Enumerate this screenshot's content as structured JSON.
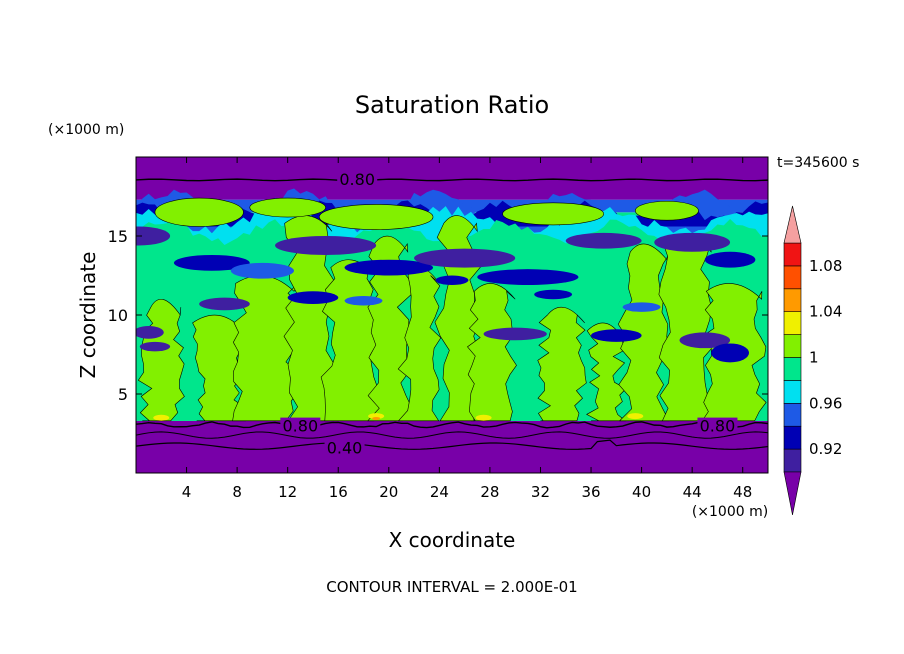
{
  "chart_data": {
    "type": "heatmap",
    "title": "Saturation Ratio",
    "xlabel": "X coordinate",
    "ylabel": "Z coordinate",
    "x_unit": "(×1000 m)",
    "z_unit": "(×1000 m)",
    "time_label": "t=345600 s",
    "footer": "CONTOUR INTERVAL = 2.000E-01",
    "xlim": [
      0,
      50
    ],
    "ylim": [
      0,
      20
    ],
    "x_ticks": [
      "4",
      "8",
      "12",
      "16",
      "20",
      "24",
      "28",
      "32",
      "36",
      "40",
      "44",
      "48"
    ],
    "y_ticks": [
      "5",
      "10",
      "15"
    ],
    "contour_labels": [
      {
        "text": "0.80",
        "x": 17.5,
        "z": 18.6
      },
      {
        "text": "0.80",
        "x": 13.0,
        "z": 3.0
      },
      {
        "text": "0.80",
        "x": 46.0,
        "z": 3.0
      },
      {
        "text": "0.40",
        "x": 16.5,
        "z": 1.6
      }
    ],
    "colorbar": {
      "labels": [
        "1.08",
        "1.04",
        "1",
        "0.96",
        "0.92"
      ],
      "levels": [
        {
          "below": 0.9,
          "color": "#7800a8"
        },
        {
          "from": 0.9,
          "to": 0.92,
          "color": "#3f1fa0"
        },
        {
          "from": 0.92,
          "to": 0.94,
          "color": "#0000b4"
        },
        {
          "from": 0.94,
          "to": 0.96,
          "color": "#1e5ae6"
        },
        {
          "from": 0.96,
          "to": 0.98,
          "color": "#00e0f0"
        },
        {
          "from": 0.98,
          "to": 1.0,
          "color": "#00e68c"
        },
        {
          "from": 1.0,
          "to": 1.02,
          "color": "#82f000"
        },
        {
          "from": 1.02,
          "to": 1.04,
          "color": "#f0f000"
        },
        {
          "from": 1.04,
          "to": 1.06,
          "color": "#ff9a00"
        },
        {
          "from": 1.06,
          "to": 1.08,
          "color": "#ff5000"
        },
        {
          "from": 1.08,
          "to": 1.1,
          "color": "#f01414"
        },
        {
          "above": 1.1,
          "color": "#f5a0a0"
        }
      ]
    },
    "bands": [
      {
        "z0": 0.0,
        "z1": 3.3,
        "level": "<0.90"
      },
      {
        "z0": 3.3,
        "z1": 16.5,
        "level": "0.98-1.02 mixed"
      },
      {
        "z0": 16.5,
        "z1": 17.3,
        "level": "0.92-0.98 mixed"
      },
      {
        "z0": 17.3,
        "z1": 20.0,
        "level": "<0.90"
      }
    ]
  }
}
